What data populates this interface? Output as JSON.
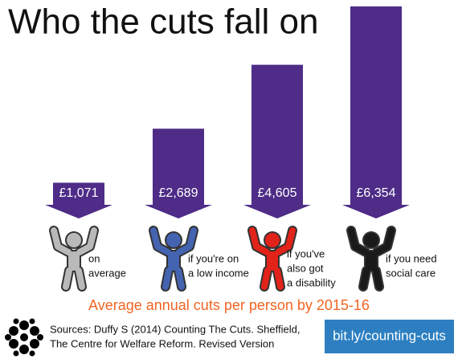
{
  "chart_data": {
    "type": "arrow-bar",
    "title": "Who the cuts fall on",
    "categories": [
      [
        "on",
        "average"
      ],
      [
        "if you're on",
        "a low income"
      ],
      [
        "if you've",
        "also got",
        "a disability"
      ],
      [
        "if you need",
        "social care"
      ]
    ],
    "values": [
      1071,
      2689,
      4605,
      6354
    ],
    "value_labels": [
      "£1,071",
      "£2,689",
      "£4,605",
      "£6,354"
    ],
    "color": "#4e2c87",
    "figure_colors": [
      "#b9b9b9",
      "#4463b0",
      "#e2231a",
      "#1a1a1a"
    ],
    "subtitle": "Average annual cuts per person by 2015-16",
    "source": [
      "Sources: Duffy S (2014) Counting The Cuts. Sheffield,",
      "The Centre for Welfare Reform. Revised Version"
    ],
    "link": "bit.ly/counting-cuts"
  }
}
